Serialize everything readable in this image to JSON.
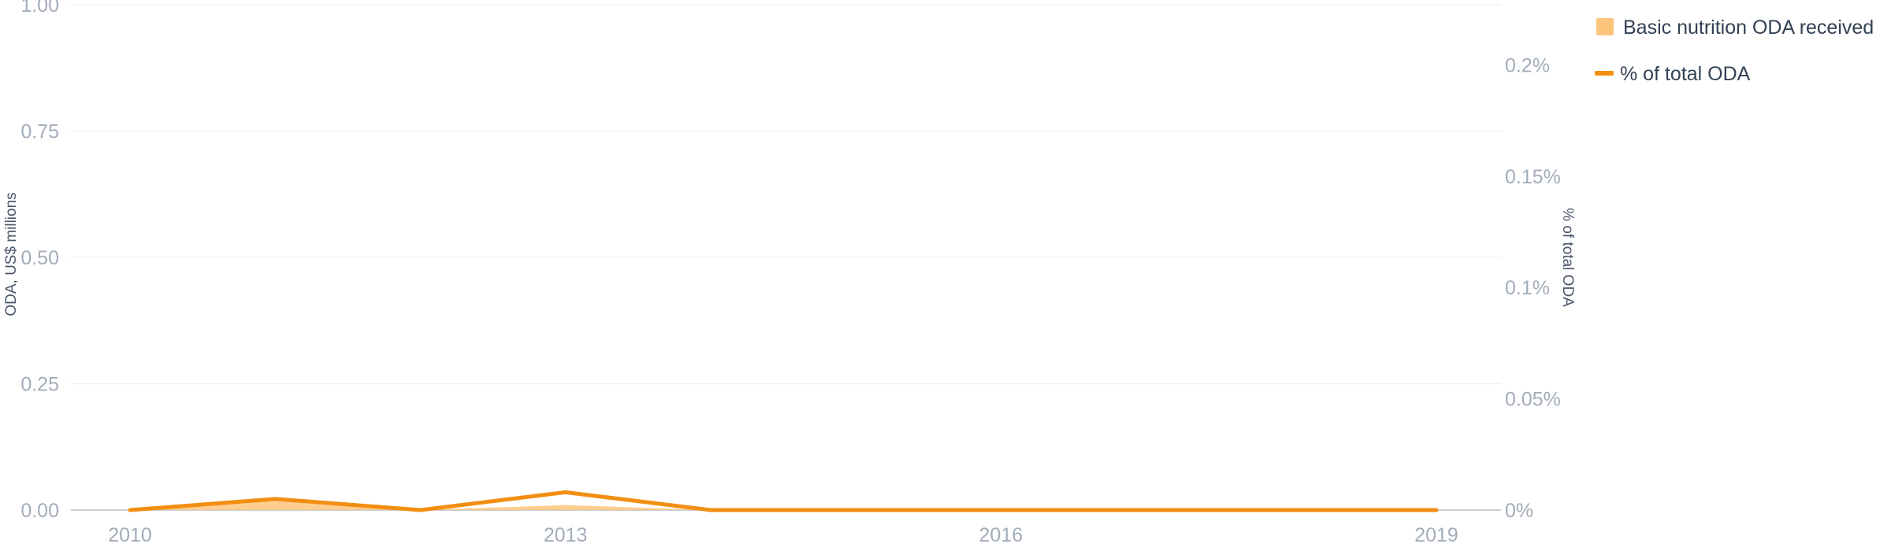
{
  "chart_data": {
    "type": "area",
    "title": "",
    "x": [
      2010,
      2011,
      2012,
      2013,
      2014,
      2015,
      2016,
      2017,
      2018,
      2019
    ],
    "x_ticks": [
      "2010",
      "2013",
      "2016",
      "2019"
    ],
    "y_left": {
      "label": "ODA, US$ millions",
      "range": [
        0,
        1
      ],
      "ticks": [
        "0.00",
        "0.25",
        "0.50",
        "0.75",
        "1.00"
      ]
    },
    "y_right": {
      "label": "% of total ODA",
      "range": [
        0,
        0.227
      ],
      "ticks": [
        "0%",
        "0.05%",
        "0.1%",
        "0.15%",
        "0.2%"
      ]
    },
    "series": [
      {
        "name": "Basic nutrition ODA received",
        "type": "area",
        "axis": "left",
        "color": "#fdc57c",
        "values": [
          0,
          0.02,
          0,
          0.01,
          0,
          0,
          0,
          0,
          0,
          0
        ]
      },
      {
        "name": "% of total ODA",
        "type": "line",
        "axis": "right",
        "color": "#f28e12",
        "values": [
          0,
          0.005,
          0,
          0.008,
          0,
          0,
          0,
          0,
          0,
          0
        ]
      }
    ],
    "grid": true,
    "legend_position": "top-right"
  }
}
